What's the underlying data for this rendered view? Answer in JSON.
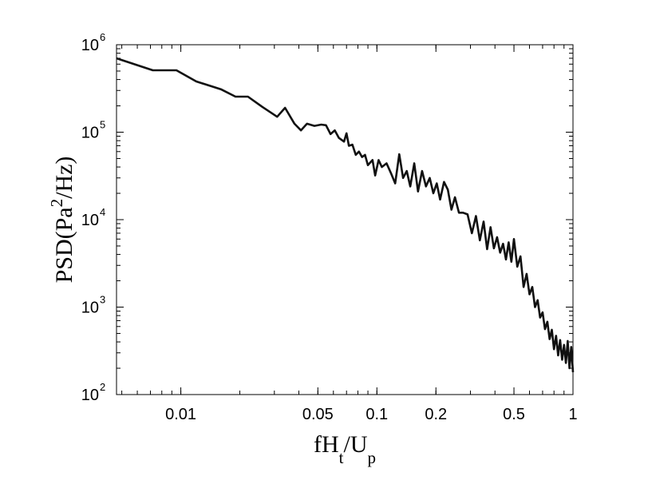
{
  "chart_data": {
    "type": "line",
    "title": "",
    "xlabel": {
      "base": "fH",
      "sub1": "t",
      "mid": "/U",
      "sub2": "p"
    },
    "ylabel": {
      "pre": "PSD(Pa",
      "sup": "2",
      "post": "/Hz)"
    },
    "x_scale": "log",
    "y_scale": "log",
    "xlim": [
      0.0047,
      1
    ],
    "ylim": [
      100,
      1000000
    ],
    "grid": false,
    "legend": "none",
    "line_color": "#111111",
    "x_ticks": [
      {
        "value": 0.01,
        "label": "0.01"
      },
      {
        "value": 0.05,
        "label": "0.05"
      },
      {
        "value": 0.1,
        "label": "0.1"
      },
      {
        "value": 0.2,
        "label": "0.2"
      },
      {
        "value": 0.5,
        "label": "0.5"
      },
      {
        "value": 1,
        "label": "1"
      }
    ],
    "y_ticks": [
      {
        "value": 100,
        "base": "10",
        "exp": "2"
      },
      {
        "value": 1000,
        "base": "10",
        "exp": "3"
      },
      {
        "value": 10000,
        "base": "10",
        "exp": "4"
      },
      {
        "value": 100000,
        "base": "10",
        "exp": "5"
      },
      {
        "value": 1000000,
        "base": "10",
        "exp": "6"
      }
    ],
    "series": [
      {
        "x": [
          0.0047,
          0.0072,
          0.0095,
          0.012,
          0.016,
          0.019,
          0.022,
          0.026,
          0.031,
          0.034,
          0.038,
          0.041,
          0.044,
          0.048,
          0.052,
          0.055,
          0.058,
          0.061,
          0.064,
          0.068,
          0.07,
          0.072,
          0.075,
          0.078,
          0.081,
          0.084,
          0.087,
          0.09,
          0.095,
          0.098,
          0.102,
          0.106,
          0.112,
          0.118,
          0.124,
          0.13,
          0.136,
          0.142,
          0.148,
          0.155,
          0.162,
          0.17,
          0.178,
          0.186,
          0.194,
          0.202,
          0.21,
          0.22,
          0.23,
          0.24,
          0.25,
          0.262,
          0.275,
          0.29,
          0.305,
          0.32,
          0.335,
          0.35,
          0.365,
          0.38,
          0.395,
          0.41,
          0.425,
          0.44,
          0.455,
          0.47,
          0.485,
          0.5,
          0.52,
          0.54,
          0.56,
          0.58,
          0.6,
          0.62,
          0.64,
          0.66,
          0.68,
          0.7,
          0.72,
          0.74,
          0.76,
          0.78,
          0.8,
          0.82,
          0.84,
          0.86,
          0.88,
          0.9,
          0.92,
          0.94,
          0.96,
          0.98,
          1.0
        ],
        "y": [
          700000,
          510000,
          510000,
          380000,
          310000,
          255000,
          255000,
          195000,
          150000,
          190000,
          125000,
          105000,
          125000,
          118000,
          122000,
          120000,
          95000,
          105000,
          86000,
          78000,
          97000,
          70000,
          72000,
          55000,
          60000,
          52000,
          55000,
          42000,
          48000,
          32000,
          48000,
          40000,
          44000,
          34000,
          26000,
          56000,
          30000,
          36000,
          24000,
          44000,
          21000,
          36000,
          24000,
          30000,
          20000,
          26000,
          17000,
          27000,
          22000,
          13000,
          18000,
          12000,
          12000,
          11500,
          7000,
          11000,
          5800,
          9500,
          4600,
          8200,
          4700,
          6300,
          4200,
          5300,
          3500,
          5500,
          3300,
          6000,
          2900,
          3800,
          1700,
          2400,
          1400,
          1700,
          1000,
          1200,
          760,
          870,
          560,
          680,
          430,
          550,
          330,
          470,
          280,
          420,
          250,
          370,
          230,
          410,
          200,
          350,
          180
        ]
      }
    ]
  }
}
